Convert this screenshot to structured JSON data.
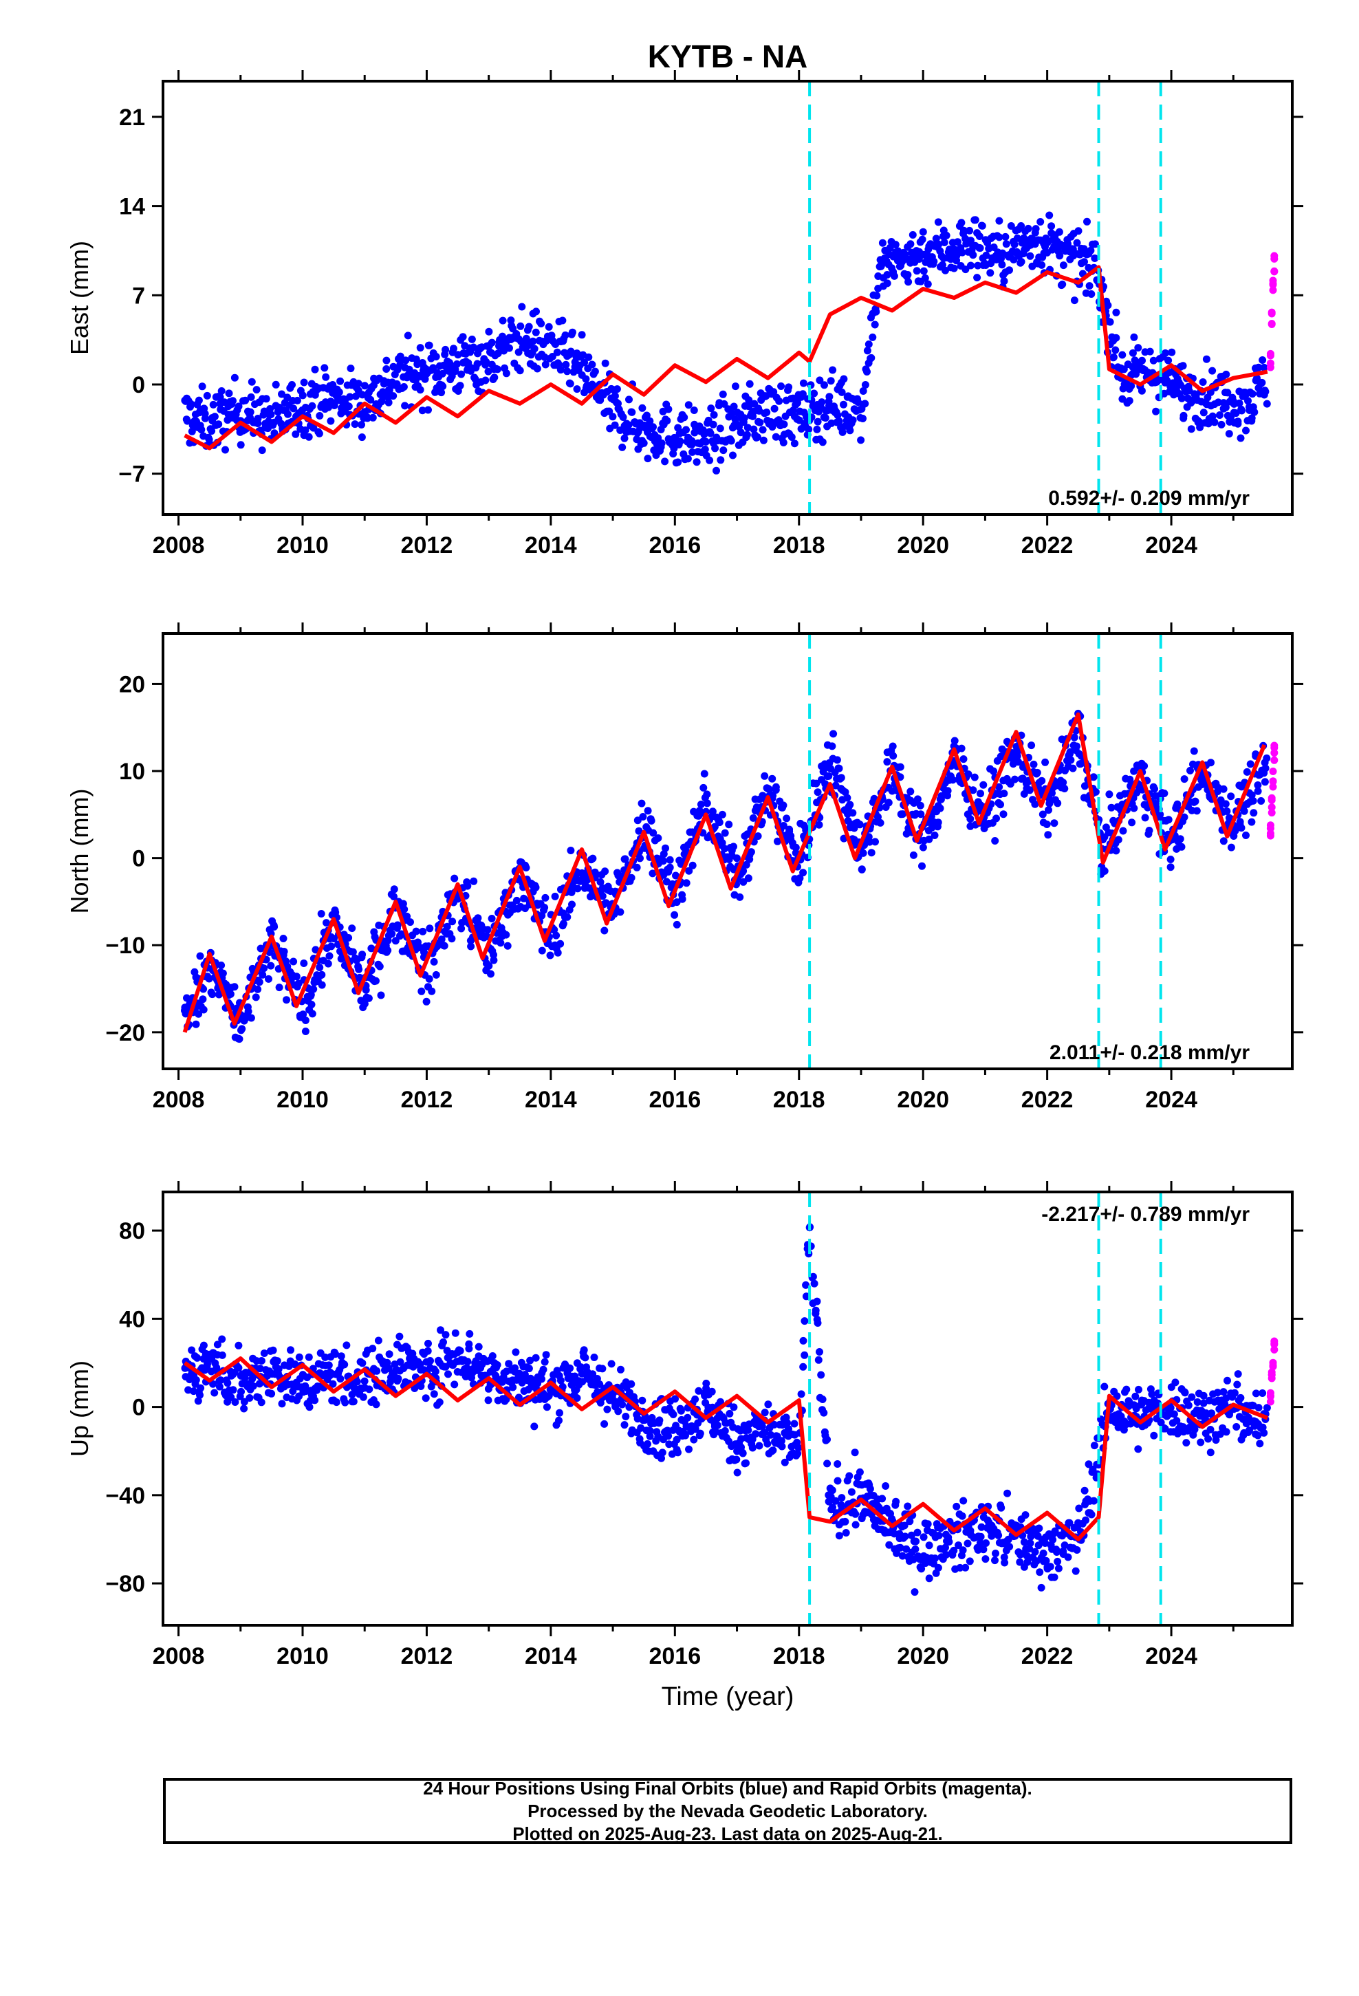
{
  "page": {
    "title": "KYTB - NA"
  },
  "chart_data": [
    {
      "type": "scatter",
      "panel": "east",
      "title": "KYTB - NA",
      "ylabel": "East (mm)",
      "xlabel": "",
      "xlim": [
        2007.75,
        2025.95
      ],
      "ylim": [
        -10.2,
        23.8
      ],
      "xticks": [
        2008,
        2010,
        2012,
        2014,
        2016,
        2018,
        2020,
        2022,
        2024
      ],
      "yticks": [
        -7,
        0,
        7,
        14,
        21
      ],
      "ytick_labels": [
        "−7",
        "0",
        "7",
        "14",
        "21"
      ],
      "rate_label": "0.592+/- 0.209 mm/yr",
      "rate_position": "bottom-right",
      "grid": false,
      "event_lines": [
        2018.17,
        2022.83,
        2023.83
      ],
      "series": [
        {
          "name": "Final Orbits",
          "color": "#0000ff",
          "x": [
            2008.1,
            2008.5,
            2009.0,
            2009.5,
            2010.0,
            2010.5,
            2011.0,
            2011.5,
            2012.0,
            2012.5,
            2013.0,
            2013.5,
            2014.0,
            2014.5,
            2015.0,
            2015.5,
            2016.0,
            2016.5,
            2017.0,
            2017.5,
            2018.0,
            2018.5,
            2019.0,
            2019.3,
            2019.8,
            2020.3,
            2020.8,
            2021.3,
            2021.8,
            2022.3,
            2022.8,
            2023.2,
            2023.7,
            2024.2,
            2024.7,
            2025.2,
            2025.55
          ],
          "y": [
            -2.5,
            -3.0,
            -2.0,
            -3.0,
            -1.5,
            -1.0,
            -1.5,
            0.5,
            1.0,
            1.5,
            2.0,
            3.5,
            3.0,
            1.0,
            -2.0,
            -3.5,
            -4.0,
            -4.5,
            -3.0,
            -2.0,
            -2.5,
            -1.5,
            -2.0,
            9.0,
            10.0,
            10.5,
            11.0,
            10.0,
            11.5,
            10.0,
            9.0,
            0.5,
            1.0,
            -0.5,
            -1.0,
            -1.5,
            0.5
          ]
        },
        {
          "name": "Rapid Orbits",
          "color": "#ff00ff",
          "x": [
            2025.6,
            2025.62,
            2025.64,
            2025.66
          ],
          "y": [
            2.0,
            5.0,
            8.0,
            9.5
          ]
        },
        {
          "name": "Model",
          "color": "#ff0000",
          "x": [
            2008.1,
            2008.5,
            2009.0,
            2009.5,
            2010.0,
            2010.5,
            2011.0,
            2011.5,
            2012.0,
            2012.5,
            2013.0,
            2013.5,
            2014.0,
            2014.5,
            2015.0,
            2015.5,
            2016.0,
            2016.5,
            2017.0,
            2017.5,
            2018.0,
            2018.17,
            2018.5,
            2019.0,
            2019.5,
            2020.0,
            2020.5,
            2021.0,
            2021.5,
            2022.0,
            2022.5,
            2022.83,
            2023.0,
            2023.5,
            2024.0,
            2024.5,
            2025.0,
            2025.55
          ],
          "y": [
            -4.0,
            -5.0,
            -3.0,
            -4.5,
            -2.5,
            -3.8,
            -1.5,
            -3.0,
            -1.0,
            -2.5,
            -0.5,
            -1.5,
            0.0,
            -1.5,
            0.8,
            -0.8,
            1.5,
            0.2,
            2.0,
            0.5,
            2.5,
            1.8,
            5.5,
            6.8,
            5.8,
            7.5,
            6.8,
            8.0,
            7.2,
            8.8,
            8.0,
            9.2,
            1.2,
            0.0,
            1.5,
            -0.5,
            0.5,
            1.0
          ]
        }
      ]
    },
    {
      "type": "scatter",
      "panel": "north",
      "ylabel": "North (mm)",
      "xlabel": "",
      "xlim": [
        2007.75,
        2025.95
      ],
      "ylim": [
        -24.2,
        25.8
      ],
      "xticks": [
        2008,
        2010,
        2012,
        2014,
        2016,
        2018,
        2020,
        2022,
        2024
      ],
      "yticks": [
        -20,
        -10,
        0,
        10,
        20
      ],
      "ytick_labels": [
        "−20",
        "−10",
        "0",
        "10",
        "20"
      ],
      "rate_label": "2.011+/- 0.218 mm/yr",
      "rate_position": "bottom-right",
      "grid": false,
      "event_lines": [
        2018.17,
        2022.83,
        2023.83
      ],
      "series": [
        {
          "name": "Final Orbits",
          "color": "#0000ff",
          "x": [
            2008.1,
            2008.5,
            2009.0,
            2009.5,
            2010.0,
            2010.5,
            2011.0,
            2011.5,
            2012.0,
            2012.5,
            2013.0,
            2013.5,
            2014.0,
            2014.5,
            2015.0,
            2015.5,
            2016.0,
            2016.5,
            2017.0,
            2017.5,
            2018.0,
            2018.5,
            2019.0,
            2019.5,
            2020.0,
            2020.5,
            2021.0,
            2021.5,
            2022.0,
            2022.5,
            2022.9,
            2023.5,
            2024.0,
            2024.5,
            2025.0,
            2025.55
          ],
          "y": [
            -19.0,
            -12.0,
            -19.0,
            -10.0,
            -17.0,
            -8.0,
            -15.0,
            -6.0,
            -13.0,
            -4.0,
            -11.0,
            -2.0,
            -9.0,
            -1.0,
            -6.0,
            4.0,
            -4.0,
            6.0,
            -2.0,
            8.0,
            -1.0,
            12.0,
            1.0,
            10.0,
            2.0,
            11.0,
            5.0,
            12.0,
            6.0,
            14.0,
            1.0,
            9.0,
            2.0,
            10.0,
            4.0,
            11.0
          ]
        },
        {
          "name": "Rapid Orbits",
          "color": "#ff00ff",
          "x": [
            2025.6,
            2025.62,
            2025.64,
            2025.66
          ],
          "y": [
            3.0,
            6.0,
            9.0,
            12.0
          ]
        },
        {
          "name": "Model",
          "color": "#ff0000",
          "x": [
            2008.1,
            2008.5,
            2008.9,
            2009.5,
            2009.9,
            2010.5,
            2010.9,
            2011.5,
            2011.9,
            2012.5,
            2012.9,
            2013.5,
            2013.9,
            2014.5,
            2014.9,
            2015.5,
            2015.9,
            2016.5,
            2016.9,
            2017.5,
            2017.9,
            2018.5,
            2018.9,
            2019.5,
            2019.9,
            2020.5,
            2020.9,
            2021.5,
            2021.9,
            2022.5,
            2022.9,
            2023.5,
            2023.9,
            2024.5,
            2024.9,
            2025.5
          ],
          "y": [
            -20.0,
            -11.0,
            -19.0,
            -9.0,
            -17.0,
            -7.0,
            -15.5,
            -5.0,
            -13.5,
            -3.0,
            -11.5,
            -1.0,
            -9.5,
            1.0,
            -7.5,
            3.0,
            -5.5,
            5.0,
            -3.5,
            7.0,
            -1.5,
            8.5,
            0.0,
            10.5,
            2.0,
            12.5,
            4.0,
            14.5,
            6.0,
            16.5,
            -0.5,
            10.0,
            1.0,
            11.0,
            2.5,
            13.0
          ]
        }
      ]
    },
    {
      "type": "scatter",
      "panel": "up",
      "ylabel": "Up (mm)",
      "xlabel": "Time (year)",
      "xlim": [
        2007.75,
        2025.95
      ],
      "ylim": [
        -99.0,
        97.5
      ],
      "xticks": [
        2008,
        2010,
        2012,
        2014,
        2016,
        2018,
        2020,
        2022,
        2024
      ],
      "yticks": [
        -80,
        -40,
        0,
        40,
        80
      ],
      "ytick_labels": [
        "−80",
        "−40",
        "0",
        "40",
        "80"
      ],
      "rate_label": "-2.217+/- 0.789 mm/yr",
      "rate_position": "top-right",
      "grid": false,
      "event_lines": [
        2018.17,
        2022.83,
        2023.83
      ],
      "series": [
        {
          "name": "Final Orbits",
          "color": "#0000ff",
          "x": [
            2008.1,
            2008.5,
            2009.0,
            2009.5,
            2010.0,
            2010.5,
            2011.0,
            2011.5,
            2012.0,
            2012.5,
            2013.0,
            2013.5,
            2014.0,
            2014.5,
            2015.0,
            2015.5,
            2016.0,
            2016.5,
            2017.0,
            2017.5,
            2018.0,
            2018.17,
            2018.5,
            2019.0,
            2019.5,
            2020.0,
            2020.5,
            2021.0,
            2021.5,
            2022.0,
            2022.5,
            2023.0,
            2023.5,
            2024.0,
            2024.5,
            2025.0,
            2025.55
          ],
          "y": [
            15.0,
            20.0,
            10.0,
            18.0,
            10.0,
            15.0,
            12.0,
            20.0,
            15.0,
            25.0,
            15.0,
            12.0,
            8.0,
            15.0,
            5.0,
            -5.0,
            -10.0,
            0.0,
            -15.0,
            -10.0,
            -20.0,
            80.0,
            -45.0,
            -40.0,
            -55.0,
            -65.0,
            -60.0,
            -55.0,
            -60.0,
            -65.0,
            -60.0,
            0.0,
            -5.0,
            0.0,
            -5.0,
            0.0,
            -10.0
          ]
        },
        {
          "name": "Rapid Orbits",
          "color": "#ff00ff",
          "x": [
            2025.6,
            2025.62,
            2025.64,
            2025.66
          ],
          "y": [
            5.0,
            15.0,
            22.0,
            28.0
          ]
        },
        {
          "name": "Model",
          "color": "#ff0000",
          "x": [
            2008.1,
            2008.5,
            2009.0,
            2009.5,
            2010.0,
            2010.5,
            2011.0,
            2011.5,
            2012.0,
            2012.5,
            2013.0,
            2013.5,
            2014.0,
            2014.5,
            2015.0,
            2015.5,
            2016.0,
            2016.5,
            2017.0,
            2017.5,
            2018.0,
            2018.17,
            2018.5,
            2019.0,
            2019.5,
            2020.0,
            2020.5,
            2021.0,
            2021.5,
            2022.0,
            2022.5,
            2022.83,
            2023.0,
            2023.5,
            2024.0,
            2024.5,
            2025.0,
            2025.55
          ],
          "y": [
            20.0,
            12.0,
            22.0,
            9.0,
            19.0,
            7.0,
            17.0,
            5.0,
            15.0,
            3.0,
            13.0,
            1.0,
            11.0,
            -1.0,
            9.0,
            -3.0,
            7.0,
            -5.0,
            5.0,
            -7.0,
            3.0,
            -50.0,
            -52.0,
            -42.0,
            -54.0,
            -44.0,
            -56.0,
            -46.0,
            -58.0,
            -48.0,
            -60.0,
            -50.0,
            5.0,
            -7.0,
            3.0,
            -9.0,
            1.0,
            -5.0
          ]
        }
      ]
    }
  ],
  "caption": {
    "line1": "24 Hour Positions Using Final Orbits (blue) and Rapid Orbits (magenta).",
    "line2": "Processed by the Nevada Geodetic Laboratory.",
    "line3": "Plotted on 2025-Aug-23. Last data on 2025-Aug-21."
  }
}
